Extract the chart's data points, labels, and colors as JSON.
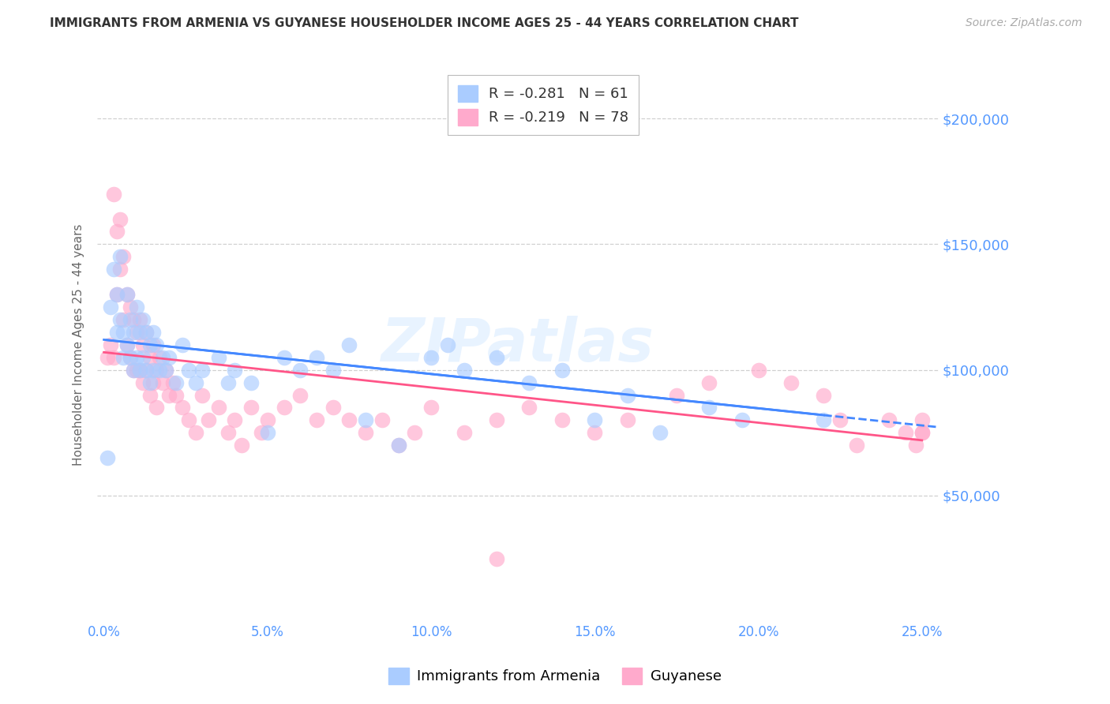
{
  "title": "IMMIGRANTS FROM ARMENIA VS GUYANESE HOUSEHOLDER INCOME AGES 25 - 44 YEARS CORRELATION CHART",
  "source": "Source: ZipAtlas.com",
  "ylabel": "Householder Income Ages 25 - 44 years",
  "xlabel_ticks": [
    "0.0%",
    "5.0%",
    "10.0%",
    "15.0%",
    "20.0%",
    "25.0%"
  ],
  "xlabel_vals": [
    0.0,
    0.05,
    0.1,
    0.15,
    0.2,
    0.25
  ],
  "ytick_labels": [
    "$50,000",
    "$100,000",
    "$150,000",
    "$200,000"
  ],
  "ytick_vals": [
    50000,
    100000,
    150000,
    200000
  ],
  "ylim": [
    0,
    220000
  ],
  "xlim": [
    -0.002,
    0.255
  ],
  "background_color": "#ffffff",
  "grid_color": "#d0d0d0",
  "title_color": "#333333",
  "source_color": "#aaaaaa",
  "ytick_color": "#5599ff",
  "xtick_color": "#5599ff",
  "armenia_color": "#aaccff",
  "guyanese_color": "#ffaacc",
  "armenia_line_color": "#4488ff",
  "guyanese_line_color": "#ff5588",
  "armenia_R": "-0.281",
  "armenia_N": "61",
  "guyanese_R": "-0.219",
  "guyanese_N": "78",
  "legend_label_armenia": "Immigrants from Armenia",
  "legend_label_guyanese": "Guyanese",
  "watermark": "ZIPatlas",
  "armenia_scatter_x": [
    0.001,
    0.002,
    0.003,
    0.004,
    0.004,
    0.005,
    0.005,
    0.006,
    0.006,
    0.007,
    0.007,
    0.008,
    0.008,
    0.009,
    0.009,
    0.01,
    0.01,
    0.011,
    0.011,
    0.012,
    0.012,
    0.013,
    0.013,
    0.014,
    0.014,
    0.015,
    0.015,
    0.016,
    0.017,
    0.018,
    0.019,
    0.02,
    0.022,
    0.024,
    0.026,
    0.028,
    0.03,
    0.035,
    0.038,
    0.04,
    0.045,
    0.05,
    0.055,
    0.06,
    0.065,
    0.07,
    0.075,
    0.08,
    0.09,
    0.1,
    0.105,
    0.11,
    0.12,
    0.13,
    0.14,
    0.15,
    0.16,
    0.17,
    0.185,
    0.195,
    0.22
  ],
  "armenia_scatter_y": [
    65000,
    125000,
    140000,
    130000,
    115000,
    145000,
    120000,
    115000,
    105000,
    130000,
    110000,
    120000,
    105000,
    115000,
    100000,
    125000,
    105000,
    115000,
    100000,
    120000,
    105000,
    115000,
    100000,
    110000,
    95000,
    115000,
    100000,
    110000,
    100000,
    105000,
    100000,
    105000,
    95000,
    110000,
    100000,
    95000,
    100000,
    105000,
    95000,
    100000,
    95000,
    75000,
    105000,
    100000,
    105000,
    100000,
    110000,
    80000,
    70000,
    105000,
    110000,
    100000,
    105000,
    95000,
    100000,
    80000,
    90000,
    75000,
    85000,
    80000,
    80000
  ],
  "guyanese_scatter_x": [
    0.001,
    0.002,
    0.003,
    0.003,
    0.004,
    0.004,
    0.005,
    0.005,
    0.006,
    0.006,
    0.007,
    0.007,
    0.008,
    0.008,
    0.009,
    0.009,
    0.01,
    0.01,
    0.011,
    0.011,
    0.012,
    0.012,
    0.013,
    0.013,
    0.014,
    0.014,
    0.015,
    0.015,
    0.016,
    0.016,
    0.017,
    0.018,
    0.019,
    0.02,
    0.021,
    0.022,
    0.024,
    0.026,
    0.028,
    0.03,
    0.032,
    0.035,
    0.038,
    0.04,
    0.042,
    0.045,
    0.048,
    0.05,
    0.055,
    0.06,
    0.065,
    0.07,
    0.075,
    0.08,
    0.085,
    0.09,
    0.095,
    0.1,
    0.11,
    0.12,
    0.13,
    0.14,
    0.15,
    0.16,
    0.175,
    0.185,
    0.2,
    0.21,
    0.22,
    0.225,
    0.23,
    0.24,
    0.245,
    0.248,
    0.25,
    0.25,
    0.25,
    0.12
  ],
  "guyanese_scatter_y": [
    105000,
    110000,
    170000,
    105000,
    155000,
    130000,
    160000,
    140000,
    145000,
    120000,
    130000,
    110000,
    125000,
    105000,
    120000,
    100000,
    115000,
    100000,
    120000,
    100000,
    110000,
    95000,
    115000,
    100000,
    105000,
    90000,
    110000,
    95000,
    100000,
    85000,
    105000,
    95000,
    100000,
    90000,
    95000,
    90000,
    85000,
    80000,
    75000,
    90000,
    80000,
    85000,
    75000,
    80000,
    70000,
    85000,
    75000,
    80000,
    85000,
    90000,
    80000,
    85000,
    80000,
    75000,
    80000,
    70000,
    75000,
    85000,
    75000,
    80000,
    85000,
    80000,
    75000,
    80000,
    90000,
    95000,
    100000,
    95000,
    90000,
    80000,
    70000,
    80000,
    75000,
    70000,
    75000,
    80000,
    75000,
    25000
  ]
}
